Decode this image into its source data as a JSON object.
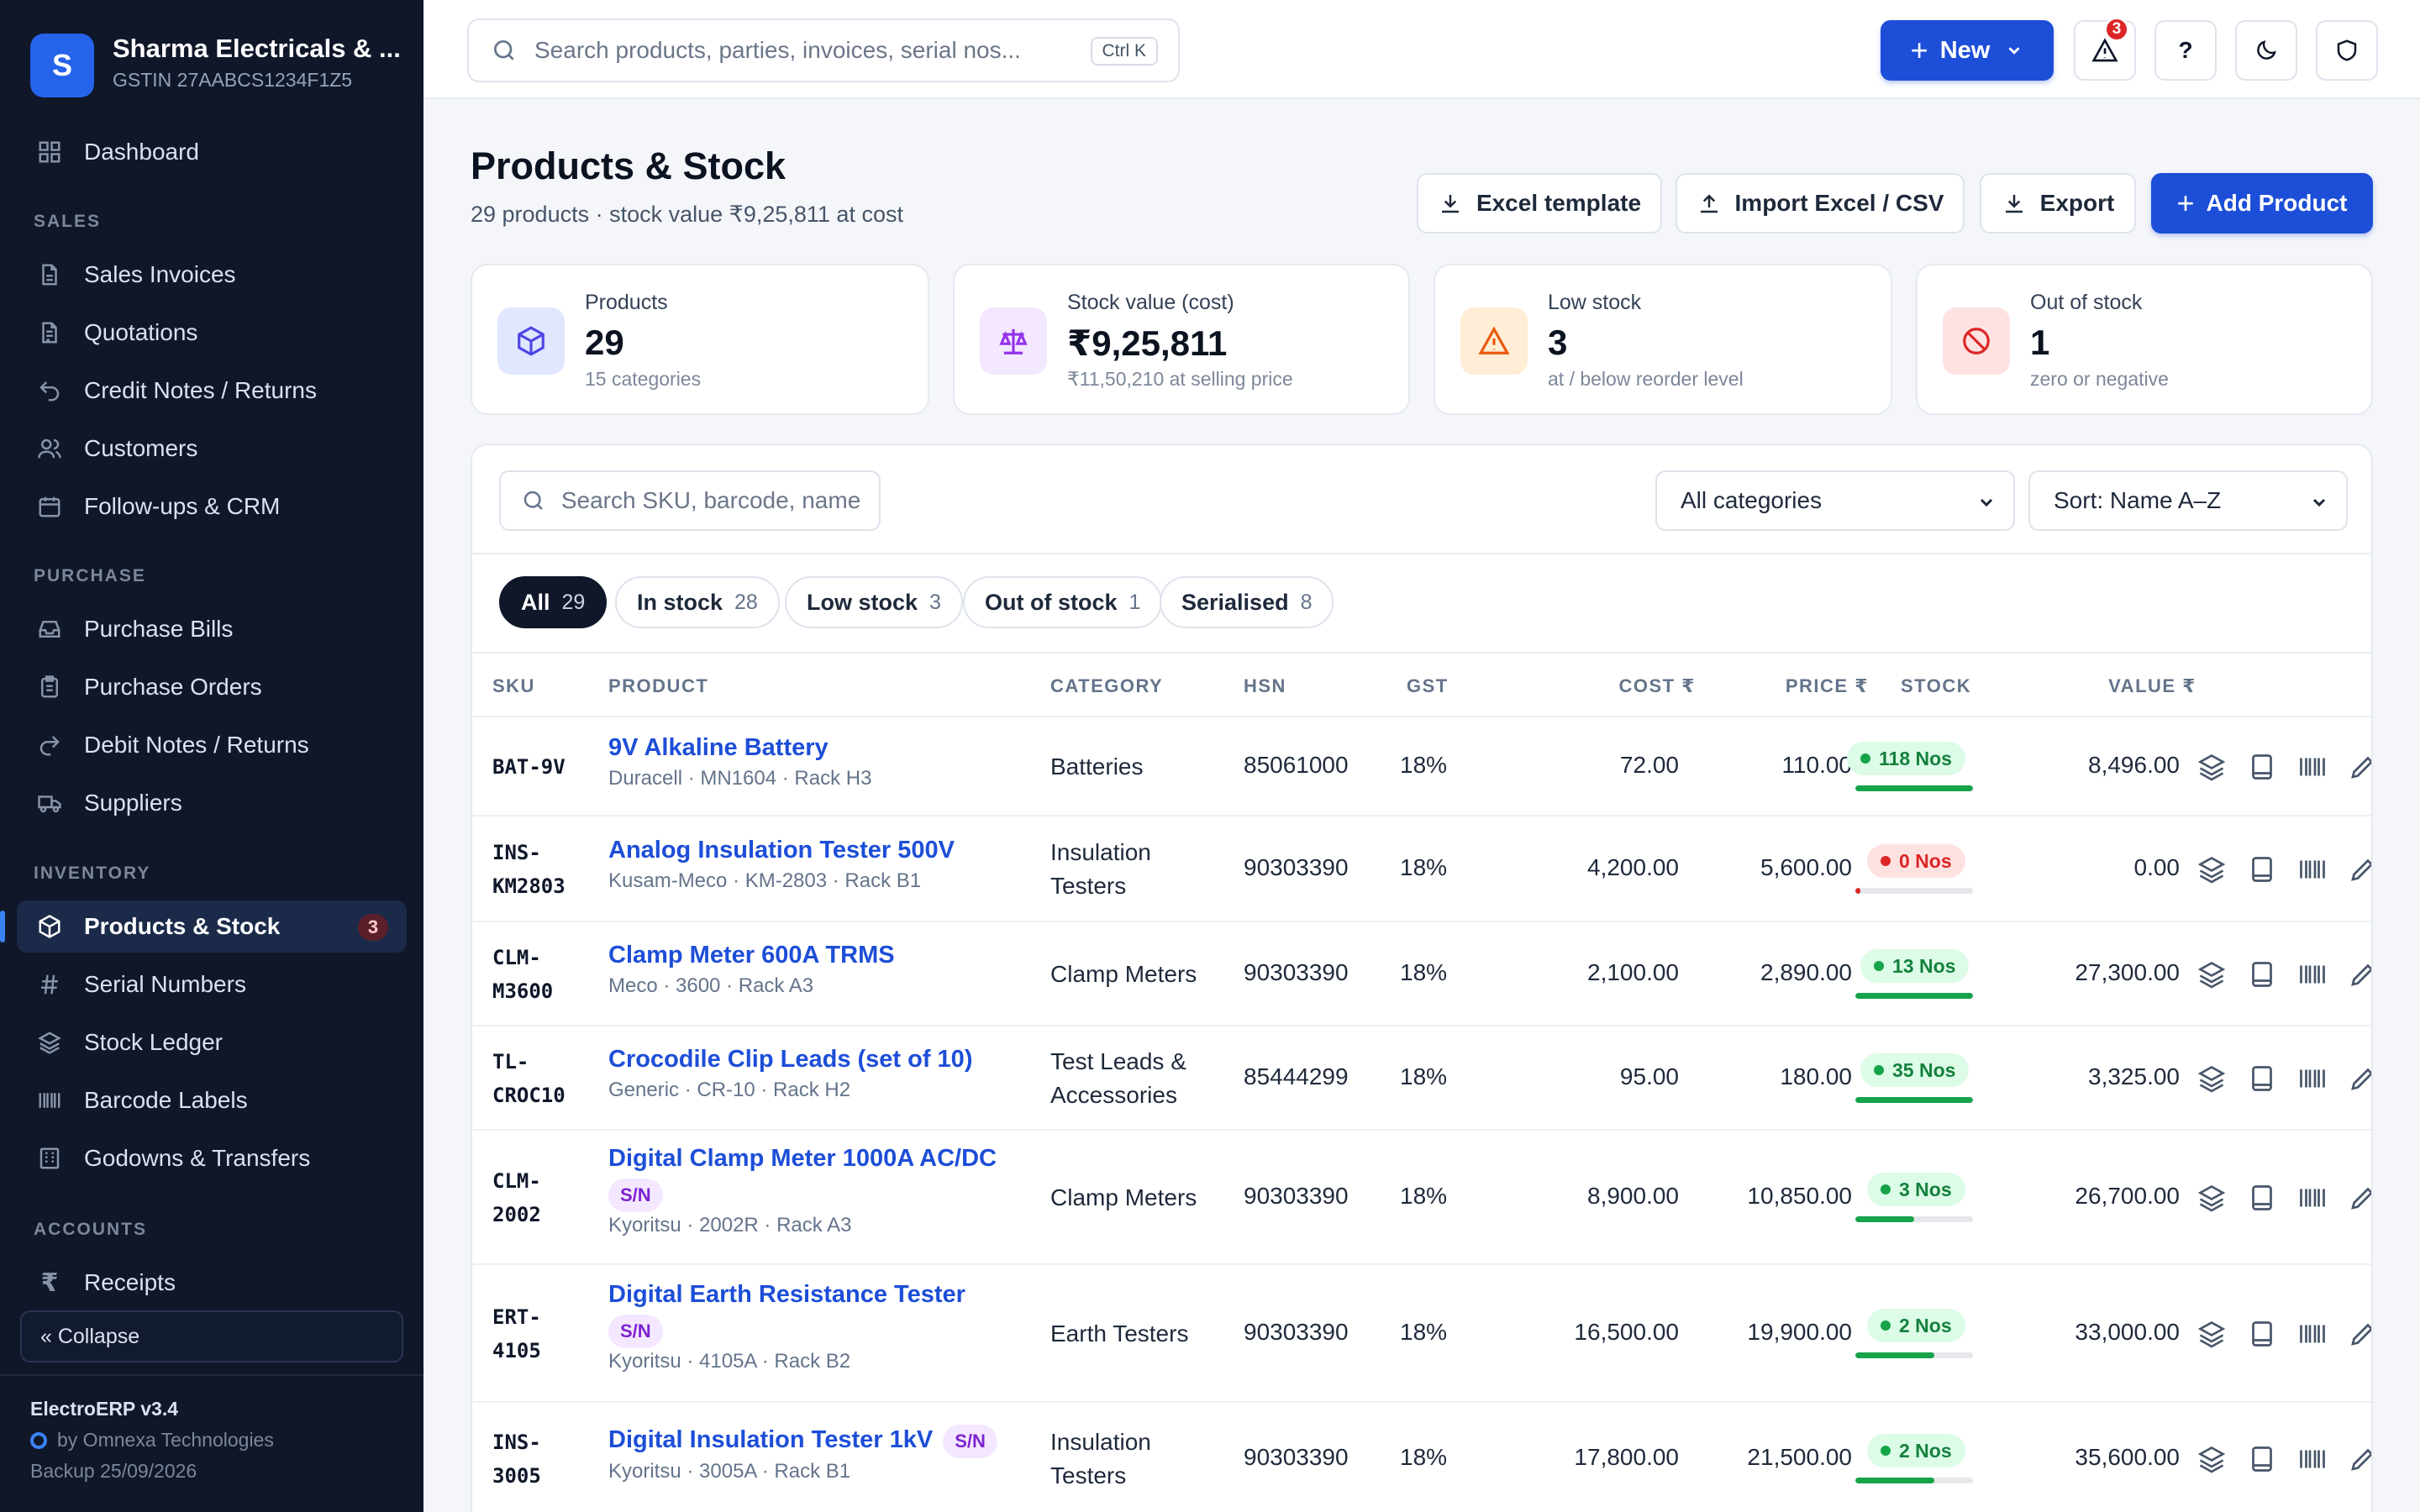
{
  "app": {
    "company_name": "Sharma Electricals & ...",
    "company_initial": "S",
    "gstin": "GSTIN 27AABCS1234F1Z5",
    "version": "ElectroERP v3.4",
    "vendor": "by Omnexa Technologies",
    "backup": "Backup 25/09/2026",
    "collapse_label": "« Collapse",
    "accent_color": "#1d4ed8"
  },
  "sidebar": {
    "dashboard": "Dashboard",
    "sections": {
      "sales": "SALES",
      "purchase": "PURCHASE",
      "inventory": "INVENTORY",
      "accounts": "ACCOUNTS"
    },
    "sales": [
      "Sales Invoices",
      "Quotations",
      "Credit Notes / Returns",
      "Customers",
      "Follow-ups & CRM"
    ],
    "purchase": [
      "Purchase Bills",
      "Purchase Orders",
      "Debit Notes / Returns",
      "Suppliers"
    ],
    "inventory": [
      "Products & Stock",
      "Serial Numbers",
      "Stock Ledger",
      "Barcode Labels",
      "Godowns & Transfers"
    ],
    "inventory_badge": "3",
    "accounts": [
      "Receipts"
    ]
  },
  "topbar": {
    "search_placeholder": "Search products, parties, invoices, serial nos...",
    "shortcut": "Ctrl K",
    "new_label": "New",
    "alert_count": "3",
    "help_label": "?"
  },
  "page": {
    "title": "Products & Stock",
    "subtitle": "29 products · stock value ₹9,25,811 at cost",
    "actions": {
      "excel_template": "Excel template",
      "import": "Import Excel / CSV",
      "export": "Export",
      "add_product": "Add Product"
    }
  },
  "stats": [
    {
      "label": "Products",
      "value": "29",
      "hint": "15 categories",
      "icon": "box-icon"
    },
    {
      "label": "Stock value (cost)",
      "value": "₹9,25,811",
      "hint": "₹11,50,210 at selling price",
      "icon": "scale-icon"
    },
    {
      "label": "Low stock",
      "value": "3",
      "hint": "at / below reorder level",
      "icon": "warning-icon"
    },
    {
      "label": "Out of stock",
      "value": "1",
      "hint": "zero or negative",
      "icon": "ban-icon"
    }
  ],
  "filters": {
    "search_placeholder": "Search SKU, barcode, name",
    "category": "All categories",
    "sort": "Sort: Name A–Z",
    "chips": [
      {
        "label": "All",
        "count": "29"
      },
      {
        "label": "In stock",
        "count": "28"
      },
      {
        "label": "Low stock",
        "count": "3"
      },
      {
        "label": "Out of stock",
        "count": "1"
      },
      {
        "label": "Serialised",
        "count": "8"
      }
    ]
  },
  "table": {
    "headers": {
      "sku": "SKU",
      "product": "PRODUCT",
      "category": "CATEGORY",
      "hsn": "HSN",
      "gst": "GST",
      "cost": "COST ₹",
      "price": "PRICE ₹",
      "stock": "STOCK",
      "value": "VALUE ₹"
    },
    "serial_badge": "S/N",
    "rows": [
      {
        "sku1": "BAT-9V",
        "sku2": "",
        "name": "9V Alkaline Battery",
        "sn": false,
        "meta": "Duracell · MN1604 · Rack H3",
        "cat1": "Batteries",
        "cat2": "",
        "hsn": "85061000",
        "gst": "18%",
        "cost": "72.00",
        "price": "110.00",
        "stock": "118 Nos",
        "level": 1.0,
        "value": "8,496.00"
      },
      {
        "sku1": "INS-",
        "sku2": "KM2803",
        "name": "Analog Insulation Tester 500V",
        "sn": false,
        "meta": "Kusam-Meco · KM-2803 · Rack B1",
        "cat1": "Insulation",
        "cat2": "Testers",
        "hsn": "90303390",
        "gst": "18%",
        "cost": "4,200.00",
        "price": "5,600.00",
        "stock": "0 Nos",
        "level": 0.0,
        "value": "0.00"
      },
      {
        "sku1": "CLM-",
        "sku2": "M3600",
        "name": "Clamp Meter 600A TRMS",
        "sn": false,
        "meta": "Meco · 3600 · Rack A3",
        "cat1": "Clamp Meters",
        "cat2": "",
        "hsn": "90303390",
        "gst": "18%",
        "cost": "2,100.00",
        "price": "2,890.00",
        "stock": "13 Nos",
        "level": 1.0,
        "value": "27,300.00"
      },
      {
        "sku1": "TL-",
        "sku2": "CROC10",
        "name": "Crocodile Clip Leads (set of 10)",
        "sn": false,
        "meta": "Generic · CR-10 · Rack H2",
        "cat1": "Test Leads &",
        "cat2": "Accessories",
        "hsn": "85444299",
        "gst": "18%",
        "cost": "95.00",
        "price": "180.00",
        "stock": "35 Nos",
        "level": 1.0,
        "value": "3,325.00"
      },
      {
        "sku1": "CLM-",
        "sku2": "2002",
        "name": "Digital Clamp Meter 1000A AC/DC",
        "sn": true,
        "meta": "Kyoritsu · 2002R · Rack A3",
        "cat1": "Clamp Meters",
        "cat2": "",
        "hsn": "90303390",
        "gst": "18%",
        "cost": "8,900.00",
        "price": "10,850.00",
        "stock": "3 Nos",
        "level": 0.5,
        "value": "26,700.00"
      },
      {
        "sku1": "ERT-",
        "sku2": "4105",
        "name": "Digital Earth Resistance Tester",
        "sn": true,
        "meta": "Kyoritsu · 4105A · Rack B2",
        "cat1": "Earth Testers",
        "cat2": "",
        "hsn": "90303390",
        "gst": "18%",
        "cost": "16,500.00",
        "price": "19,900.00",
        "stock": "2 Nos",
        "level": 0.67,
        "value": "33,000.00"
      },
      {
        "sku1": "INS-",
        "sku2": "3005",
        "name": "Digital Insulation Tester 1kV",
        "sn": true,
        "meta": "Kyoritsu · 3005A · Rack B1",
        "cat1": "Insulation",
        "cat2": "Testers",
        "hsn": "90303390",
        "gst": "18%",
        "cost": "17,800.00",
        "price": "21,500.00",
        "stock": "2 Nos",
        "level": 0.67,
        "value": "35,600.00"
      }
    ]
  }
}
